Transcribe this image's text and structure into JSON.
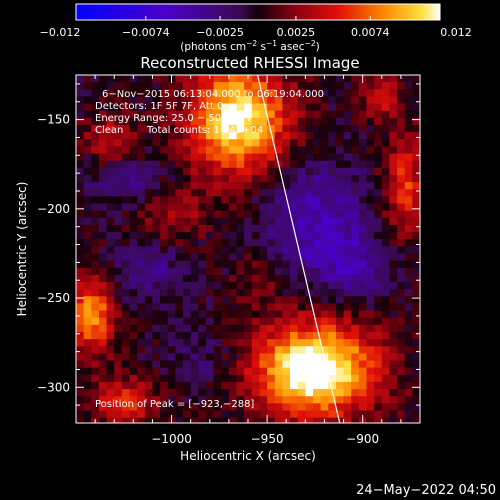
{
  "chart_data": {
    "type": "heatmap",
    "title": "Reconstructed RHESSI Image",
    "xlabel": "Heliocentric X (arcsec)",
    "ylabel": "Heliocentric Y (arcsec)",
    "xlim": [
      -1050,
      -870
    ],
    "ylim": [
      -320,
      -125
    ],
    "xticks": [
      -1000,
      -950,
      -900
    ],
    "xtick_labels": [
      "−1000",
      "−950",
      "−900"
    ],
    "yticks": [
      -150,
      -200,
      -250,
      -300
    ],
    "ytick_labels": [
      "−150",
      "−200",
      "−250",
      "−300"
    ],
    "colorbar": {
      "min": -0.012,
      "max": 0.012,
      "ticks": [
        -0.012,
        -0.0074,
        -0.0025,
        0.0025,
        0.0074,
        0.012
      ],
      "tick_labels": [
        "−0.012",
        "−0.0074",
        "−0.0025",
        "0.0025",
        "0.0074",
        "0.012"
      ],
      "unit_main": "(photons cm",
      "unit_exp1": "−2",
      "unit_mid": " s",
      "unit_exp2": "−1",
      "unit_after": " asec",
      "unit_exp3": "−2",
      "unit_close": ")"
    },
    "annotations": {
      "line1": "6−Nov−2015 06:13:04.000 to 06:19:04.000",
      "line2": "Detectors: 1F 5F 7F, Att 0",
      "line3": "Energy Range: 25.0 − 50.0 keV",
      "line4_a": "Clean",
      "line4_b": "Total counts: 1.34E+04",
      "peak": "Position of Peak = [−923,−288]"
    },
    "peak": {
      "x": -923,
      "y": -288
    },
    "limb_line": [
      {
        "x": -955,
        "y": -125
      },
      {
        "x": -912,
        "y": -320
      }
    ],
    "pixel_size_arcsec": 4,
    "sources": [
      {
        "x": -925,
        "y": -290,
        "sx": 22,
        "sy": 18,
        "amp": 0.014
      },
      {
        "x": -965,
        "y": -150,
        "sx": 18,
        "sy": 22,
        "amp": 0.012
      },
      {
        "x": -1042,
        "y": -260,
        "sx": 8,
        "sy": 14,
        "amp": 0.009
      },
      {
        "x": -1032,
        "y": -160,
        "sx": 9,
        "sy": 10,
        "amp": 0.0045
      },
      {
        "x": -878,
        "y": -188,
        "sx": 8,
        "sy": 20,
        "amp": 0.006
      },
      {
        "x": -890,
        "y": -138,
        "sx": 7,
        "sy": 8,
        "amp": 0.005
      },
      {
        "x": -1000,
        "y": -205,
        "sx": 14,
        "sy": 11,
        "amp": 0.003
      },
      {
        "x": -1025,
        "y": -308,
        "sx": 12,
        "sy": 9,
        "amp": 0.006
      },
      {
        "x": -955,
        "y": -240,
        "sx": 10,
        "sy": 10,
        "amp": 0.002
      },
      {
        "x": -1010,
        "y": -235,
        "sx": 14,
        "sy": 12,
        "amp": -0.003
      },
      {
        "x": -925,
        "y": -205,
        "sx": 20,
        "sy": 22,
        "amp": -0.005
      },
      {
        "x": -905,
        "y": -232,
        "sx": 14,
        "sy": 12,
        "amp": -0.004
      },
      {
        "x": -1025,
        "y": -185,
        "sx": 14,
        "sy": 10,
        "amp": -0.003
      },
      {
        "x": -985,
        "y": -285,
        "sx": 14,
        "sy": 14,
        "amp": -0.002
      }
    ],
    "date_stamp": "24−May−2022 04:50"
  }
}
